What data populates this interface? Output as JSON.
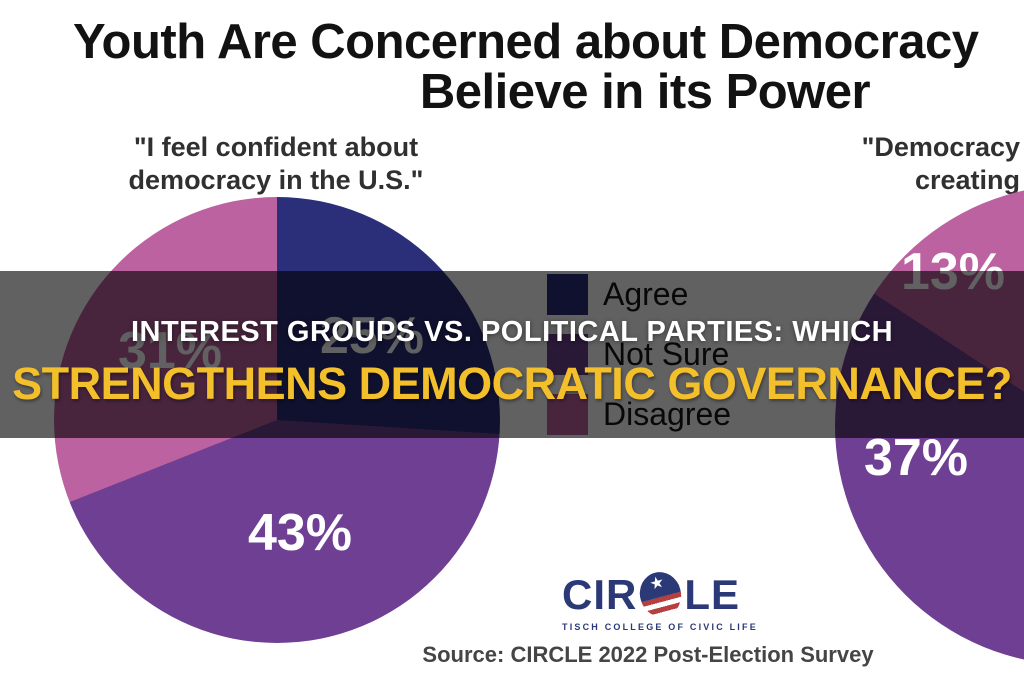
{
  "title": {
    "line1": "Youth Are Concerned about Democracy",
    "line2": "Believe in its Power",
    "note_line1_clipped_at_right_edge": true
  },
  "banner": {
    "line1": "INTEREST GROUPS VS. POLITICAL PARTIES: WHICH",
    "line2": "STRENGTHENS DEMOCRATIC GOVERNANCE?",
    "line1_color": "#ffffff",
    "line2_color": "#f3c02c"
  },
  "chart_data": {
    "type": "pie",
    "legend_position": "center-between-pies",
    "legend": [
      {
        "label": "Agree",
        "color": "#2b2f7a"
      },
      {
        "label": "Not Sure",
        "color": "#6e3f92"
      },
      {
        "label": "Disagree",
        "color": "#bd62a0"
      }
    ],
    "pies": [
      {
        "question_line1": "\"I feel confident about",
        "question_line2": "democracy in the U.S.\"",
        "slices": [
          {
            "label": "Agree",
            "value": 25,
            "display": "25%"
          },
          {
            "label": "Not Sure",
            "value": 43,
            "display": "43%"
          },
          {
            "label": "Disagree",
            "value": 31,
            "display": "31%"
          }
        ]
      },
      {
        "question_line1": "\"Democracy",
        "question_line2": "creating",
        "clipped_at_right_edge": true,
        "slices": [
          {
            "label": "Not Sure",
            "value": 37,
            "display": "37%"
          },
          {
            "label": "Disagree",
            "value": 13,
            "display": "13%"
          }
        ]
      }
    ]
  },
  "logo": {
    "wordmark_pre": "CIR",
    "wordmark_post": "LE",
    "tagline": "TISCH COLLEGE OF CIVIC LIFE",
    "navy": "#2b3a76",
    "red": "#b64040"
  },
  "source_text": "Source: CIRCLE 2022 Post-Election Survey"
}
